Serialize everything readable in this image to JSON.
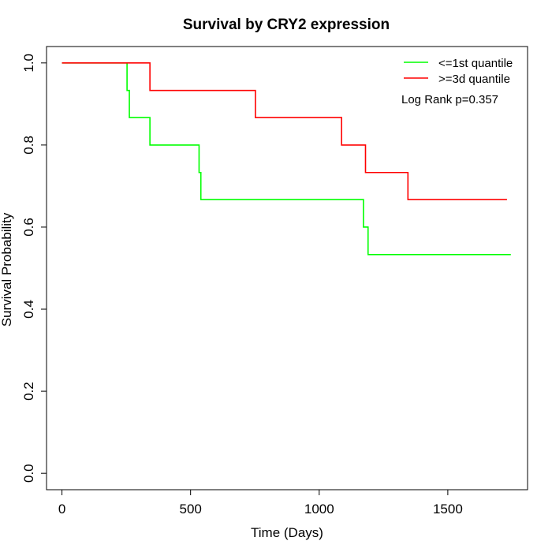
{
  "chart_data": {
    "type": "line",
    "title": "Survival by CRY2 expression",
    "xlabel": "Time (Days)",
    "ylabel": "Survival Probability",
    "xlim": [
      -60,
      1810
    ],
    "ylim": [
      -0.04,
      1.04
    ],
    "x_ticks": [
      0,
      500,
      1000,
      1500
    ],
    "y_ticks": [
      0.0,
      0.2,
      0.4,
      0.6,
      0.8,
      1.0
    ],
    "x_tick_labels": [
      "0",
      "500",
      "1000",
      "1500"
    ],
    "y_tick_labels": [
      "0.0",
      "0.2",
      "0.4",
      "0.6",
      "0.8",
      "1.0"
    ],
    "grid": false,
    "legend_position": "top-right",
    "series": [
      {
        "name": "<=1st quantile",
        "color": "#00ff00",
        "step": true,
        "x": [
          0,
          253,
          262,
          342,
          533,
          540,
          1172,
          1190,
          1745
        ],
        "y": [
          1.0,
          0.933,
          0.867,
          0.8,
          0.733,
          0.667,
          0.6,
          0.533,
          0.533
        ]
      },
      {
        "name": ">=3d quantile",
        "color": "#ff0000",
        "step": true,
        "x": [
          0,
          342,
          752,
          1087,
          1180,
          1345,
          1730
        ],
        "y": [
          1.0,
          0.933,
          0.867,
          0.8,
          0.733,
          0.667,
          0.667
        ]
      }
    ],
    "annotations": [
      "Log Rank p=0.357"
    ]
  }
}
